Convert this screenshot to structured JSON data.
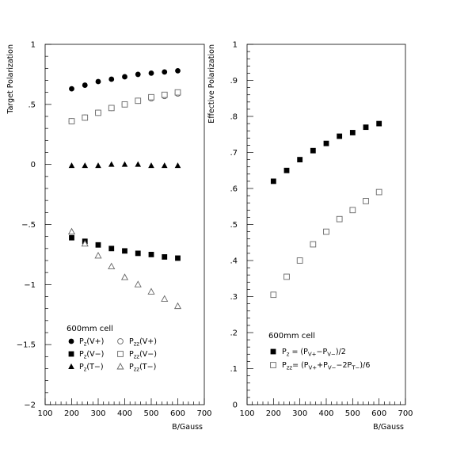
{
  "chart_data": [
    {
      "type": "scatter",
      "title": "",
      "xlabel": "B/Gauss",
      "ylabel": "Target Polarization",
      "xlim": [
        100,
        700
      ],
      "ylim": [
        -2,
        1
      ],
      "x_ticks": [
        100,
        200,
        300,
        400,
        500,
        600,
        700
      ],
      "y_ticks": [
        -2,
        -1.5,
        -1,
        -0.5,
        0,
        0.5,
        1
      ],
      "grid": false,
      "legend_title": "600mm cell",
      "legend_position": "bottom-left",
      "series": [
        {
          "label": {
            "main": "P",
            "sub": "z",
            "rest": "(V+)"
          },
          "marker": "filled-circle",
          "x": [
            200,
            250,
            300,
            350,
            400,
            450,
            500,
            550,
            600
          ],
          "y": [
            0.63,
            0.66,
            0.69,
            0.71,
            0.73,
            0.75,
            0.76,
            0.77,
            0.78
          ]
        },
        {
          "label": {
            "main": "P",
            "sub": "zz",
            "rest": "(V+)"
          },
          "marker": "open-circle",
          "x": [
            200,
            250,
            300,
            350,
            400,
            450,
            500,
            550,
            600
          ],
          "y": [
            0.36,
            0.39,
            0.43,
            0.47,
            0.5,
            0.53,
            0.55,
            0.57,
            0.59
          ]
        },
        {
          "label": {
            "main": "P",
            "sub": "z",
            "rest": "(V−)"
          },
          "marker": "filled-square",
          "x": [
            200,
            250,
            300,
            350,
            400,
            450,
            500,
            550,
            600
          ],
          "y": [
            -0.61,
            -0.64,
            -0.67,
            -0.7,
            -0.72,
            -0.74,
            -0.75,
            -0.77,
            -0.78
          ]
        },
        {
          "label": {
            "main": "P",
            "sub": "zz",
            "rest": "(V−)"
          },
          "marker": "open-square",
          "x": [
            200,
            250,
            300,
            350,
            400,
            450,
            500,
            550,
            600
          ],
          "y": [
            0.36,
            0.39,
            0.43,
            0.47,
            0.5,
            0.53,
            0.56,
            0.58,
            0.6
          ]
        },
        {
          "label": {
            "main": "P",
            "sub": "z",
            "rest": "(T−)"
          },
          "marker": "filled-triangle",
          "x": [
            200,
            250,
            300,
            350,
            400,
            450,
            500,
            550,
            600
          ],
          "y": [
            -0.01,
            -0.01,
            -0.01,
            0.0,
            0.0,
            0.0,
            -0.01,
            -0.01,
            -0.01
          ]
        },
        {
          "label": {
            "main": "P",
            "sub": "zz",
            "rest": "(T−)"
          },
          "marker": "open-triangle",
          "x": [
            200,
            250,
            300,
            350,
            400,
            450,
            500,
            550,
            600
          ],
          "y": [
            -0.56,
            -0.66,
            -0.76,
            -0.85,
            -0.94,
            -1.0,
            -1.06,
            -1.12,
            -1.18
          ]
        }
      ]
    },
    {
      "type": "scatter",
      "title": "",
      "xlabel": "B/Gauss",
      "ylabel": "Effective Polarization",
      "xlim": [
        100,
        700
      ],
      "ylim": [
        0,
        1
      ],
      "x_ticks": [
        100,
        200,
        300,
        400,
        500,
        600,
        700
      ],
      "y_ticks": [
        0,
        0.1,
        0.2,
        0.3,
        0.4,
        0.5,
        0.6,
        0.7,
        0.8,
        0.9,
        1
      ],
      "grid": false,
      "legend_title": "600mm cell",
      "legend_position": "bottom-right",
      "series": [
        {
          "label": {
            "main": "P",
            "sub": "z",
            "rest": " = (P",
            "sub2": "V+",
            "rest2": "−P",
            "sub3": "V−",
            "rest3": ")/2"
          },
          "marker": "filled-square",
          "x": [
            200,
            250,
            300,
            350,
            400,
            450,
            500,
            550,
            600
          ],
          "y": [
            0.62,
            0.65,
            0.68,
            0.705,
            0.725,
            0.745,
            0.755,
            0.77,
            0.78
          ]
        },
        {
          "label": {
            "main": "P",
            "sub": "zz",
            "rest": "= (P",
            "sub2": "V+",
            "rest2": "+P",
            "sub3": "V−",
            "rest3": "−2P",
            "sub4": "T−",
            "rest4": ")/6"
          },
          "marker": "open-square",
          "x": [
            200,
            250,
            300,
            350,
            400,
            450,
            500,
            550,
            600
          ],
          "y": [
            0.305,
            0.355,
            0.4,
            0.445,
            0.48,
            0.515,
            0.54,
            0.565,
            0.59
          ]
        }
      ]
    }
  ]
}
